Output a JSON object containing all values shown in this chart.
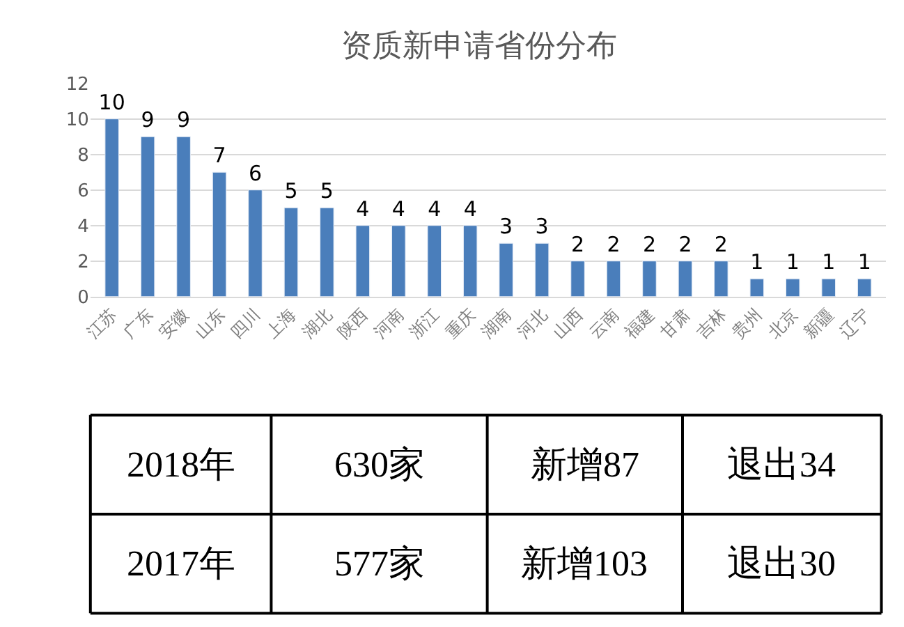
{
  "chart_data": [
    {
      "type": "bar",
      "title": "资质新申请省份分布",
      "categories": [
        "江苏",
        "广东",
        "安徽",
        "山东",
        "四川",
        "上海",
        "湖北",
        "陕西",
        "河南",
        "浙江",
        "重庆",
        "湖南",
        "河北",
        "山西",
        "云南",
        "福建",
        "甘肃",
        "吉林",
        "贵州",
        "北京",
        "新疆",
        "辽宁"
      ],
      "values": [
        10,
        9,
        9,
        7,
        6,
        5,
        5,
        4,
        4,
        4,
        4,
        3,
        3,
        2,
        2,
        2,
        2,
        2,
        1,
        1,
        1,
        1
      ],
      "color": "#4a7ebb",
      "ylim": [
        0,
        12
      ],
      "yticks": [
        0,
        2,
        4,
        6,
        8,
        10,
        12
      ],
      "grid": "y",
      "data_labels": true
    },
    {
      "type": "other",
      "annotations": [
        "2018年",
        "630家",
        "新增87",
        "退出34",
        "2017年",
        "577家",
        "新增103",
        "退出30"
      ]
    }
  ]
}
